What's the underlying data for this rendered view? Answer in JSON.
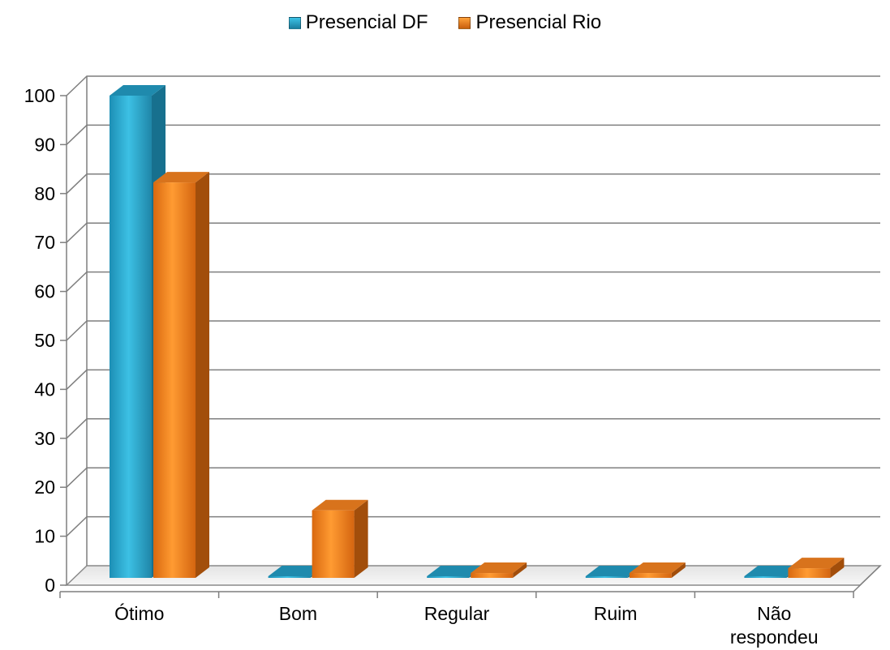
{
  "chart_data": {
    "type": "bar",
    "title": "",
    "xlabel": "",
    "ylabel": "",
    "categories": [
      "Ótimo",
      "Bom",
      "Regular",
      "Ruim",
      "Não respondeu"
    ],
    "series": [
      {
        "name": "Presencial DF",
        "values": [
          100,
          0,
          0,
          0,
          0
        ],
        "color": "#2aa6c9"
      },
      {
        "name": "Presencial Rio",
        "values": [
          82,
          14,
          1,
          1,
          2
        ],
        "color": "#f07d1a"
      }
    ],
    "ylim": [
      0,
      100
    ],
    "yticks": [
      0,
      10,
      20,
      30,
      40,
      50,
      60,
      70,
      80,
      90,
      100
    ],
    "grid": true,
    "legend_position": "top-center",
    "style": "3d-clustered-column"
  }
}
